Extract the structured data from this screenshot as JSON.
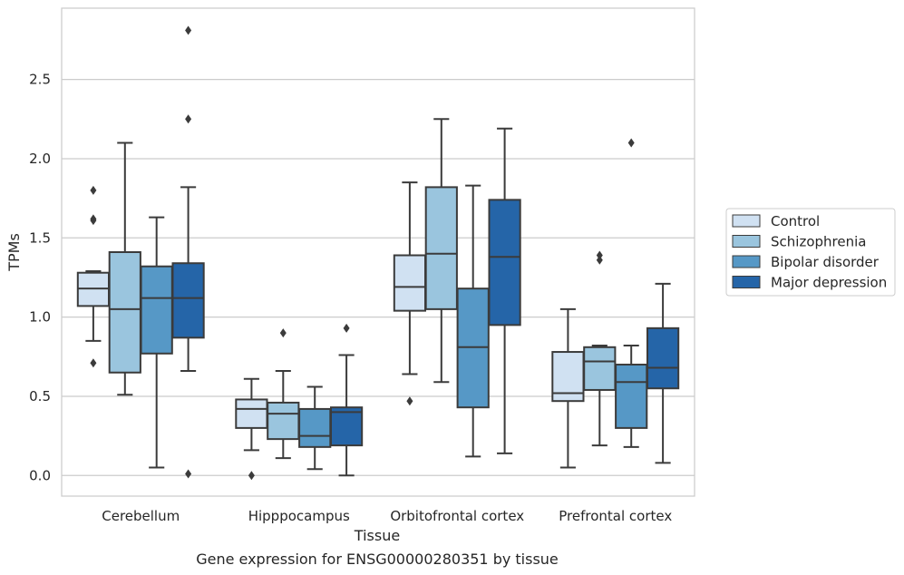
{
  "chart_data": {
    "type": "box",
    "xlabel": "Tissue",
    "ylabel": "TPMs",
    "caption": "Gene expression for ENSG00000280351 by tissue",
    "categories": [
      "Cerebellum",
      "Hipppocampus",
      "Orbitofrontal cortex",
      "Prefrontal cortex"
    ],
    "ylim": [
      -0.13,
      2.95
    ],
    "yticks": [
      0.0,
      0.5,
      1.0,
      1.5,
      2.0,
      2.5
    ],
    "ytick_labels": [
      "0.0",
      "0.5",
      "1.0",
      "1.5",
      "2.0",
      "2.5"
    ],
    "grid": "horizontal",
    "legend_placement": "right",
    "series": [
      {
        "name": "Control",
        "color": "#d0e1f2",
        "boxes": [
          {
            "whislo": 0.85,
            "q1": 1.07,
            "med": 1.18,
            "q3": 1.28,
            "whishi": 1.29,
            "fliers": [
              1.8,
              1.62,
              1.61,
              0.71
            ]
          },
          {
            "whislo": 0.16,
            "q1": 0.3,
            "med": 0.42,
            "q3": 0.48,
            "whishi": 0.61,
            "fliers": [
              0.0
            ]
          },
          {
            "whislo": 0.64,
            "q1": 1.04,
            "med": 1.19,
            "q3": 1.39,
            "whishi": 1.85,
            "fliers": [
              0.47
            ]
          },
          {
            "whislo": 0.05,
            "q1": 0.47,
            "med": 0.52,
            "q3": 0.78,
            "whishi": 1.05,
            "fliers": []
          }
        ]
      },
      {
        "name": "Schizophrenia",
        "color": "#9ac5de",
        "boxes": [
          {
            "whislo": 0.51,
            "q1": 0.65,
            "med": 1.05,
            "q3": 1.41,
            "whishi": 2.1,
            "fliers": []
          },
          {
            "whislo": 0.11,
            "q1": 0.23,
            "med": 0.39,
            "q3": 0.46,
            "whishi": 0.66,
            "fliers": [
              0.9
            ]
          },
          {
            "whislo": 0.59,
            "q1": 1.05,
            "med": 1.4,
            "q3": 1.82,
            "whishi": 2.25,
            "fliers": []
          },
          {
            "whislo": 0.19,
            "q1": 0.54,
            "med": 0.72,
            "q3": 0.81,
            "whishi": 0.82,
            "fliers": [
              1.39,
              1.36
            ]
          }
        ]
      },
      {
        "name": "Bipolar disorder",
        "color": "#5698c6",
        "boxes": [
          {
            "whislo": 0.05,
            "q1": 0.77,
            "med": 1.12,
            "q3": 1.32,
            "whishi": 1.63,
            "fliers": []
          },
          {
            "whislo": 0.04,
            "q1": 0.18,
            "med": 0.25,
            "q3": 0.42,
            "whishi": 0.56,
            "fliers": []
          },
          {
            "whislo": 0.12,
            "q1": 0.43,
            "med": 0.81,
            "q3": 1.18,
            "whishi": 1.83,
            "fliers": []
          },
          {
            "whislo": 0.18,
            "q1": 0.3,
            "med": 0.59,
            "q3": 0.7,
            "whishi": 0.82,
            "fliers": [
              2.1
            ]
          }
        ]
      },
      {
        "name": "Major depression",
        "color": "#2565a8",
        "boxes": [
          {
            "whislo": 0.66,
            "q1": 0.87,
            "med": 1.12,
            "q3": 1.34,
            "whishi": 1.82,
            "fliers": [
              2.81,
              2.25,
              0.01
            ]
          },
          {
            "whislo": 0.0,
            "q1": 0.19,
            "med": 0.4,
            "q3": 0.43,
            "whishi": 0.76,
            "fliers": [
              0.93
            ]
          },
          {
            "whislo": 0.14,
            "q1": 0.95,
            "med": 1.38,
            "q3": 1.74,
            "whishi": 2.19,
            "fliers": []
          },
          {
            "whislo": 0.08,
            "q1": 0.55,
            "med": 0.68,
            "q3": 0.93,
            "whishi": 1.21,
            "fliers": []
          }
        ]
      }
    ]
  }
}
